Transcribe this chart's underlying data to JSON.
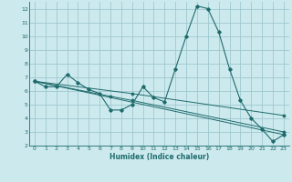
{
  "xlabel": "Humidex (Indice chaleur)",
  "bg_color": "#cce9ee",
  "grid_color": "#9fc8d0",
  "line_color": "#1e6b6b",
  "xlim": [
    -0.5,
    23.5
  ],
  "ylim": [
    2,
    12.5
  ],
  "xticks": [
    0,
    1,
    2,
    3,
    4,
    5,
    6,
    7,
    8,
    9,
    10,
    11,
    12,
    13,
    14,
    15,
    16,
    17,
    18,
    19,
    20,
    21,
    22,
    23
  ],
  "yticks": [
    2,
    3,
    4,
    5,
    6,
    7,
    8,
    9,
    10,
    11,
    12
  ],
  "series_main": {
    "x": [
      0,
      1,
      2,
      3,
      4,
      5,
      6,
      7,
      8,
      9,
      10,
      11,
      12,
      13,
      14,
      15,
      16,
      17,
      18,
      19,
      20,
      21,
      22,
      23
    ],
    "y": [
      6.7,
      6.3,
      6.3,
      7.2,
      6.6,
      6.1,
      5.8,
      4.6,
      4.6,
      5.0,
      6.3,
      5.5,
      5.2,
      7.6,
      10.0,
      12.2,
      12.0,
      10.3,
      7.6,
      5.3,
      4.0,
      3.2,
      2.3,
      2.8
    ]
  },
  "series_extra": [
    {
      "x": [
        0,
        23
      ],
      "y": [
        6.7,
        2.8
      ]
    },
    {
      "x": [
        0,
        7,
        9,
        23
      ],
      "y": [
        6.7,
        5.6,
        5.3,
        3.0
      ]
    },
    {
      "x": [
        0,
        9,
        23
      ],
      "y": [
        6.7,
        5.8,
        4.2
      ]
    }
  ]
}
